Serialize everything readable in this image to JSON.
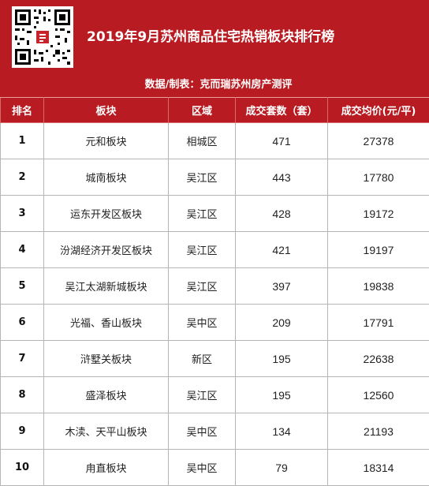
{
  "header": {
    "title": "2019年9月苏州商品住宅热销板块排行榜",
    "subtitle": "数据/制表：克而瑞苏州房产测评"
  },
  "table": {
    "columns": [
      "排名",
      "板块",
      "区域",
      "成交套数（套）",
      "成交均价(元/平)"
    ],
    "rows": [
      {
        "rank": "1",
        "block": "元和板块",
        "district": "相城区",
        "units": "471",
        "price": "27378"
      },
      {
        "rank": "2",
        "block": "城南板块",
        "district": "吴江区",
        "units": "443",
        "price": "17780"
      },
      {
        "rank": "3",
        "block": "运东开发区板块",
        "district": "吴江区",
        "units": "428",
        "price": "19172"
      },
      {
        "rank": "4",
        "block": "汾湖经济开发区板块",
        "district": "吴江区",
        "units": "421",
        "price": "19197"
      },
      {
        "rank": "5",
        "block": "吴江太湖新城板块",
        "district": "吴江区",
        "units": "397",
        "price": "19838"
      },
      {
        "rank": "6",
        "block": "光福、香山板块",
        "district": "吴中区",
        "units": "209",
        "price": "17791"
      },
      {
        "rank": "7",
        "block": "浒墅关板块",
        "district": "新区",
        "units": "195",
        "price": "22638"
      },
      {
        "rank": "8",
        "block": "盛泽板块",
        "district": "吴江区",
        "units": "195",
        "price": "12560"
      },
      {
        "rank": "9",
        "block": "木渎、天平山板块",
        "district": "吴中区",
        "units": "134",
        "price": "21193"
      },
      {
        "rank": "10",
        "block": "甪直板块",
        "district": "吴中区",
        "units": "79",
        "price": "18314"
      }
    ]
  },
  "colors": {
    "brand_red": "#b81c22",
    "grid": "#b5b5b5"
  }
}
